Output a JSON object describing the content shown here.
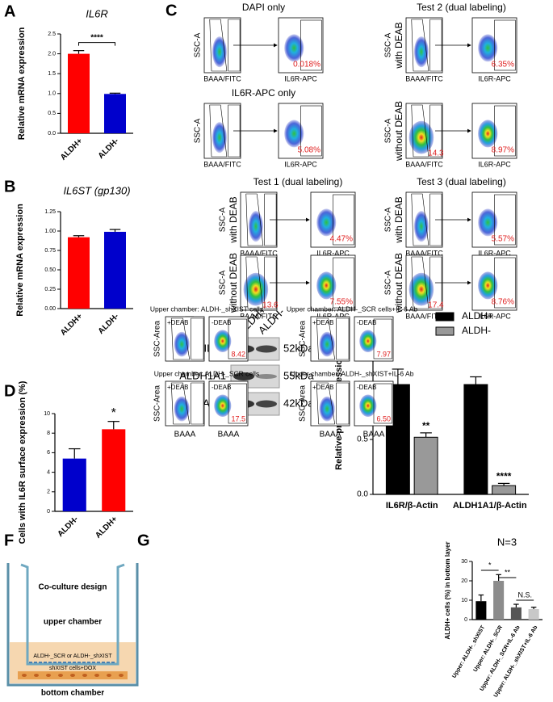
{
  "panel_labels": [
    "A",
    "B",
    "C",
    "D",
    "E",
    "F",
    "G"
  ],
  "chart_data": [
    {
      "type": "bar",
      "title": "IL6R",
      "y_label": "Relative mRNA expression",
      "categories": [
        "ALDH+",
        "ALDH-"
      ],
      "values": [
        2.0,
        0.99
      ],
      "errors": [
        0.08,
        0.02
      ],
      "colors": [
        "#ff0000",
        "#0000cc"
      ],
      "ylim": [
        0,
        2.5
      ],
      "yticks": [
        {
          "value": 0,
          "label": "0.0"
        },
        0.5,
        {
          "value": 1,
          "label": "1.0"
        },
        1.5,
        {
          "value": 2,
          "label": "2.0"
        },
        2.5
      ],
      "significance": [
        "****"
      ]
    },
    {
      "type": "bar",
      "title": "IL6ST (gp130)",
      "y_label": "Relative mRNA expression",
      "categories": [
        "ALDH+",
        "ALDH-"
      ],
      "values": [
        0.92,
        0.99
      ],
      "errors": [
        0.02,
        0.03
      ],
      "colors": [
        "#ff0000",
        "#0000cc"
      ],
      "ylim": [
        0,
        1.25
      ],
      "yticks": [
        {
          "value": 0,
          "label": "0.00"
        },
        0.25,
        {
          "value": 0.5,
          "label": "0.50"
        },
        0.75,
        {
          "value": 1,
          "label": "1.00"
        },
        1.25
      ]
    },
    {
      "type": "bar",
      "y_label": "Cells with IL6R surface expression (%)",
      "categories": [
        "ALDH-",
        "ALDH+"
      ],
      "values": [
        5.4,
        8.4
      ],
      "errors": [
        1.0,
        0.8
      ],
      "colors": [
        "#0000cc",
        "#ff0000"
      ],
      "ylim": [
        0,
        10
      ],
      "yticks": [
        0,
        2,
        4,
        6,
        8,
        10
      ],
      "significance": [
        "*"
      ]
    },
    {
      "type": "bar",
      "y_label": "Relative protein expression",
      "categories": [
        "IL6R/β-Actin",
        "ALDH1A1/β-Actin"
      ],
      "series": [
        {
          "name": "ALDH+",
          "color": "#000000",
          "values": [
            1.0,
            1.0
          ],
          "errors": [
            0.14,
            0.07
          ]
        },
        {
          "name": "ALDH-",
          "color": "#999999",
          "values": [
            0.52,
            0.08
          ],
          "errors": [
            0.04,
            0.02
          ]
        }
      ],
      "ylim": [
        0,
        1.5
      ],
      "yticks": [
        {
          "value": 0,
          "label": "0.0"
        },
        0.5,
        {
          "value": 1,
          "label": "1.0"
        },
        1.5
      ],
      "significance": [
        "**",
        "****"
      ]
    },
    {
      "type": "bar",
      "title": "N=3",
      "y_label": "ALDH+ cells (%) in bottom layer",
      "categories": [
        "Upper: ALDH-_shXIST",
        "Upper: ALDH-_SCR",
        "Upper: ALDH-_SCR+IL-6 Ab",
        "Upper: ALDH-_shXIST+IL-6 Ab"
      ],
      "values": [
        9.5,
        20,
        6.3,
        5.4
      ],
      "errors": [
        3.2,
        3.2,
        1.6,
        1.0
      ],
      "colors": [
        "#000000",
        "#8c8c8c",
        "#555555",
        "#c8c8c8"
      ],
      "ylim": [
        0,
        30
      ],
      "yticks": [
        0,
        10,
        20,
        30
      ],
      "significance": [
        "*",
        "**",
        "N.S."
      ]
    }
  ],
  "western_blot": {
    "columns": [
      "ALDH+",
      "ALDH-"
    ],
    "rows": [
      {
        "protein": "IL6R",
        "size": "52kDa"
      },
      {
        "protein": "ALDH1A1",
        "size": "55kDa"
      },
      {
        "protein": "β-Actin",
        "size": "42kDa"
      }
    ]
  },
  "flow_c": {
    "axes": {
      "ssc": "SSC-A",
      "fitc": "BAAA/FITC",
      "apc": "IL6R-APC"
    },
    "groups": [
      {
        "title": "DAPI only",
        "rows": [
          {
            "percent": "0.018%"
          }
        ]
      },
      {
        "title": "IL6R-APC only",
        "rows": [
          {
            "percent": "5.08%"
          }
        ]
      },
      {
        "title": "Test 1 (dual labeling)",
        "rows": [
          {
            "label": "with DEAB",
            "percent": "4.47%"
          },
          {
            "label": "without DEAB",
            "gate": "13.6",
            "percent": "7.55%"
          }
        ]
      },
      {
        "title": "Test 2 (dual labeling)",
        "rows": [
          {
            "label": "with DEAB",
            "percent": "6.35%"
          },
          {
            "label": "without DEAB",
            "gate": "14.3",
            "percent": "8.97%"
          }
        ]
      },
      {
        "title": "Test 3 (dual labeling)",
        "rows": [
          {
            "label": "with DEAB",
            "percent": "5.57%"
          },
          {
            "label": "without DEAB",
            "gate": "17.4",
            "percent": "8.76%"
          }
        ]
      }
    ]
  },
  "coculture": {
    "title": "Co-culture design",
    "upper": "upper chamber",
    "insert": "ALDH-_SCR or ALDH-_shXIST",
    "cells": "shXIST cells+DOX",
    "bottom": "bottom chamber"
  },
  "flow_g": {
    "axes": {
      "ssc": "SSC-Area",
      "x": "BAAA"
    },
    "conditions": [
      "+DEAB",
      "-DEAB"
    ],
    "groups": [
      {
        "title": "Upper chamber: ALDH-_shXIST cells",
        "percent": "8.42"
      },
      {
        "title": "Upper chamber: ALDH-_SCR cells+IL-6 Ab",
        "percent": "7.97"
      },
      {
        "title": "Upper chamber: ALDH-_SCR cells",
        "percent": "17.5"
      },
      {
        "title": "Upper chamber: ALDH-_shXIST+IL-6 Ab",
        "percent": "6.50"
      }
    ]
  }
}
